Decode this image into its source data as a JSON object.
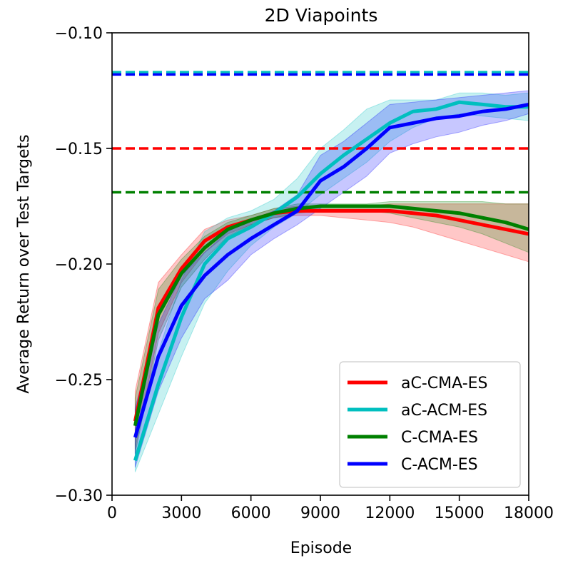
{
  "chart_data": {
    "type": "line",
    "title": "2D Viapoints",
    "xlabel": "Episode",
    "ylabel": "Average Return over Test Targets",
    "xlim": [
      0,
      18000
    ],
    "ylim": [
      -0.3,
      -0.1
    ],
    "xticks": [
      0,
      3000,
      6000,
      9000,
      12000,
      15000,
      18000
    ],
    "xtick_labels": [
      "0",
      "3000",
      "6000",
      "9000",
      "12000",
      "15000",
      "18000"
    ],
    "yticks": [
      -0.3,
      -0.25,
      -0.2,
      -0.15,
      -0.1
    ],
    "ytick_labels": [
      "−0.30",
      "−0.25",
      "−0.20",
      "−0.15",
      "−0.10"
    ],
    "legend_position": "lower-right",
    "series": [
      {
        "name": "aC-CMA-ES",
        "color": "#ff0000",
        "x": [
          1000,
          2000,
          3000,
          4000,
          5000,
          6000,
          7000,
          8000,
          9000,
          10000,
          11000,
          12000,
          13000,
          14000,
          15000,
          16000,
          17000,
          18000
        ],
        "values": [
          -0.268,
          -0.219,
          -0.202,
          -0.19,
          -0.184,
          -0.181,
          -0.178,
          -0.177,
          -0.177,
          -0.177,
          -0.177,
          -0.177,
          -0.178,
          -0.179,
          -0.181,
          -0.183,
          -0.185,
          -0.187
        ],
        "lower": [
          -0.28,
          -0.23,
          -0.208,
          -0.195,
          -0.187,
          -0.183,
          -0.18,
          -0.179,
          -0.179,
          -0.18,
          -0.181,
          -0.182,
          -0.184,
          -0.187,
          -0.19,
          -0.193,
          -0.196,
          -0.199
        ],
        "upper": [
          -0.255,
          -0.208,
          -0.196,
          -0.185,
          -0.181,
          -0.179,
          -0.176,
          -0.175,
          -0.175,
          -0.175,
          -0.175,
          -0.174,
          -0.174,
          -0.174,
          -0.174,
          -0.174,
          -0.174,
          -0.174
        ],
        "baseline": -0.15
      },
      {
        "name": "aC-ACM-ES",
        "color": "#00bfbf",
        "x": [
          1000,
          2000,
          3000,
          4000,
          5000,
          6000,
          7000,
          8000,
          9000,
          10000,
          11000,
          12000,
          13000,
          14000,
          15000,
          16000,
          17000,
          18000
        ],
        "values": [
          -0.285,
          -0.252,
          -0.223,
          -0.2,
          -0.189,
          -0.184,
          -0.178,
          -0.171,
          -0.161,
          -0.153,
          -0.146,
          -0.139,
          -0.134,
          -0.133,
          -0.13,
          -0.131,
          -0.132,
          -0.132
        ],
        "lower": [
          -0.29,
          -0.265,
          -0.24,
          -0.217,
          -0.203,
          -0.192,
          -0.184,
          -0.178,
          -0.17,
          -0.163,
          -0.156,
          -0.147,
          -0.141,
          -0.137,
          -0.135,
          -0.136,
          -0.137,
          -0.138
        ],
        "upper": [
          -0.275,
          -0.238,
          -0.207,
          -0.186,
          -0.18,
          -0.177,
          -0.172,
          -0.163,
          -0.15,
          -0.142,
          -0.133,
          -0.129,
          -0.129,
          -0.129,
          -0.126,
          -0.126,
          -0.127,
          -0.126
        ],
        "baseline": -0.117
      },
      {
        "name": "C-CMA-ES",
        "color": "#008000",
        "x": [
          1000,
          2000,
          3000,
          4000,
          5000,
          6000,
          7000,
          8000,
          9000,
          10000,
          11000,
          12000,
          13000,
          14000,
          15000,
          16000,
          17000,
          18000
        ],
        "values": [
          -0.27,
          -0.222,
          -0.204,
          -0.193,
          -0.185,
          -0.181,
          -0.178,
          -0.176,
          -0.175,
          -0.175,
          -0.175,
          -0.175,
          -0.176,
          -0.177,
          -0.178,
          -0.18,
          -0.182,
          -0.185
        ],
        "lower": [
          -0.282,
          -0.233,
          -0.21,
          -0.198,
          -0.188,
          -0.183,
          -0.18,
          -0.178,
          -0.177,
          -0.177,
          -0.177,
          -0.178,
          -0.18,
          -0.182,
          -0.184,
          -0.187,
          -0.191,
          -0.195
        ],
        "upper": [
          -0.258,
          -0.211,
          -0.198,
          -0.188,
          -0.182,
          -0.179,
          -0.176,
          -0.174,
          -0.174,
          -0.174,
          -0.174,
          -0.173,
          -0.173,
          -0.173,
          -0.173,
          -0.173,
          -0.174,
          -0.174
        ],
        "baseline": -0.169
      },
      {
        "name": "C-ACM-ES",
        "color": "#0000ff",
        "x": [
          1000,
          2000,
          3000,
          4000,
          5000,
          6000,
          7000,
          8000,
          9000,
          10000,
          11000,
          12000,
          13000,
          14000,
          15000,
          16000,
          17000,
          18000
        ],
        "values": [
          -0.275,
          -0.24,
          -0.218,
          -0.205,
          -0.196,
          -0.189,
          -0.183,
          -0.177,
          -0.164,
          -0.158,
          -0.15,
          -0.141,
          -0.139,
          -0.137,
          -0.136,
          -0.134,
          -0.133,
          -0.131
        ],
        "lower": [
          -0.288,
          -0.255,
          -0.232,
          -0.215,
          -0.207,
          -0.196,
          -0.189,
          -0.183,
          -0.176,
          -0.169,
          -0.162,
          -0.152,
          -0.148,
          -0.145,
          -0.143,
          -0.14,
          -0.138,
          -0.135
        ],
        "upper": [
          -0.262,
          -0.226,
          -0.205,
          -0.195,
          -0.186,
          -0.181,
          -0.177,
          -0.17,
          -0.153,
          -0.147,
          -0.139,
          -0.131,
          -0.13,
          -0.129,
          -0.128,
          -0.127,
          -0.126,
          -0.125
        ],
        "baseline": -0.118
      }
    ]
  }
}
